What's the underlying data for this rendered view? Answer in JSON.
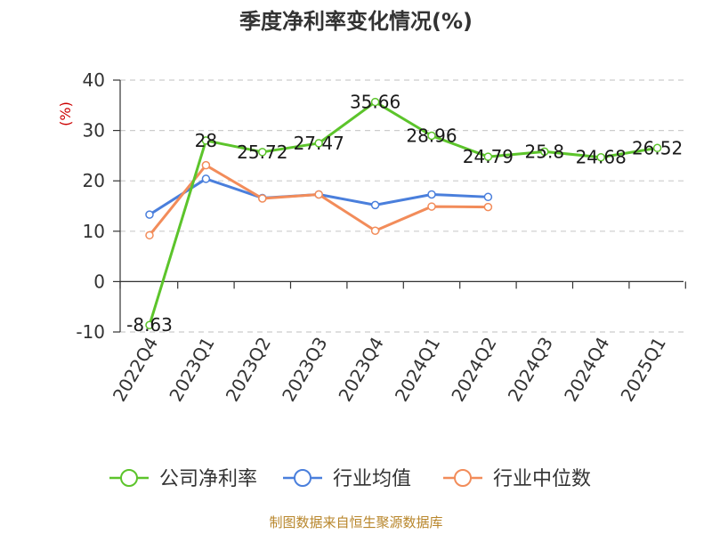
{
  "chart_data": {
    "type": "line",
    "title": "季度净利率变化情况(%)",
    "ylabel": "(%)",
    "xlabel": "",
    "ylim": [
      -10,
      40
    ],
    "yticks": [
      -10,
      0,
      10,
      20,
      30,
      40
    ],
    "categories": [
      "2022Q4",
      "2023Q1",
      "2023Q2",
      "2023Q3",
      "2023Q4",
      "2024Q1",
      "2024Q2",
      "2024Q3",
      "2024Q4",
      "2025Q1"
    ],
    "series": [
      {
        "name": "公司净利率",
        "color": "#5cc42b",
        "values": [
          -8.63,
          28,
          25.72,
          27.47,
          35.66,
          28.96,
          24.79,
          25.8,
          24.68,
          26.52
        ],
        "labels": [
          "-8.63",
          "28",
          "25.72",
          "27.47",
          "35.66",
          "28.96",
          "24.79",
          "25.8",
          "24.68",
          "26.52"
        ]
      },
      {
        "name": "行业均值",
        "color": "#4a7fdc",
        "values": [
          13.3,
          20.4,
          16.6,
          17.3,
          15.2,
          17.3,
          16.8,
          null,
          null,
          null
        ]
      },
      {
        "name": "行业中位数",
        "color": "#f28c5a",
        "values": [
          9.2,
          23.1,
          16.5,
          17.3,
          10.1,
          14.9,
          14.8,
          null,
          null,
          null
        ]
      }
    ],
    "grid": true,
    "legend": "bottom"
  },
  "source": "制图数据来自恒生聚源数据库"
}
